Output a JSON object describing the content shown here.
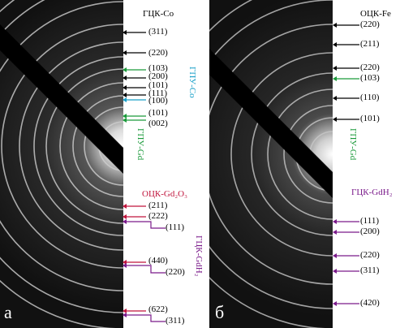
{
  "panel_a": {
    "letter": "а",
    "title": "ГЦК-Co",
    "labels": [
      {
        "text": "(311)",
        "color": "#000000"
      },
      {
        "text": "(220)",
        "color": "#000000"
      },
      {
        "text": "(103)",
        "color": "#1a9a3a"
      },
      {
        "text": "(200)",
        "color": "#000000"
      },
      {
        "text": "(101)",
        "color": "#000000"
      },
      {
        "text": "(111)",
        "color": "#000000"
      },
      {
        "text": "(100)",
        "color": "#1aa0c8"
      },
      {
        "text": "(101)",
        "color": "#1a9a3a"
      },
      {
        "text": "(002)",
        "color": "#1a9a3a"
      },
      {
        "text": "(211)",
        "color": "#000000"
      },
      {
        "text": "(222)",
        "color": "#000000"
      },
      {
        "text": "(111)",
        "color": "#000000"
      },
      {
        "text": "(440)",
        "color": "#000000"
      },
      {
        "text": "(220)",
        "color": "#000000"
      },
      {
        "text": "(622)",
        "color": "#000000"
      },
      {
        "text": "(311)",
        "color": "#000000"
      }
    ],
    "vertical_labels": [
      {
        "text": "ГПУ-Co",
        "color": "#1aa0c8"
      },
      {
        "text": "ГПУ-Gd",
        "color": "#1a9a3a"
      },
      {
        "text": "ГЦК-GdH₂",
        "color": "#7a1a8a"
      }
    ],
    "phase_oxide": {
      "text": "ОЦК-Gd₂O₃",
      "color": "#c0143c"
    }
  },
  "panel_b": {
    "letter": "б",
    "title": "ОЦК-Fe",
    "labels": [
      {
        "text": "(220)",
        "color": "#000000"
      },
      {
        "text": "(211)",
        "color": "#000000"
      },
      {
        "text": "(220)",
        "color": "#000000"
      },
      {
        "text": "(103)",
        "color": "#000000"
      },
      {
        "text": "(110)",
        "color": "#000000"
      },
      {
        "text": "(101)",
        "color": "#000000"
      },
      {
        "text": "(111)",
        "color": "#000000"
      },
      {
        "text": "(200)",
        "color": "#000000"
      },
      {
        "text": "(220)",
        "color": "#000000"
      },
      {
        "text": "(311)",
        "color": "#000000"
      },
      {
        "text": "(420)",
        "color": "#000000"
      }
    ],
    "vertical_labels": [
      {
        "text": "ГПУ-Gd",
        "color": "#1a9a3a"
      }
    ],
    "phase_hydride": {
      "text": "ГЦК-GdH₂",
      "color": "#7a1a8a"
    }
  }
}
